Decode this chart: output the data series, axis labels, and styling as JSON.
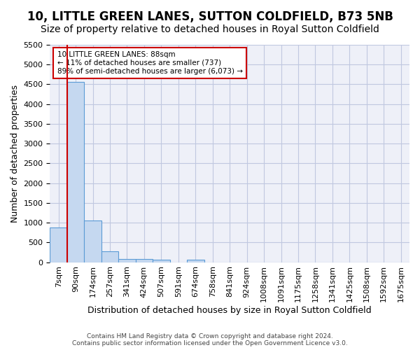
{
  "title": "10, LITTLE GREEN LANES, SUTTON COLDFIELD, B73 5NB",
  "subtitle": "Size of property relative to detached houses in Royal Sutton Coldfield",
  "xlabel": "Distribution of detached houses by size in Royal Sutton Coldfield",
  "ylabel": "Number of detached properties",
  "footer_line1": "Contains HM Land Registry data © Crown copyright and database right 2024.",
  "footer_line2": "Contains public sector information licensed under the Open Government Licence v3.0.",
  "bin_labels": [
    "7sqm",
    "90sqm",
    "174sqm",
    "257sqm",
    "341sqm",
    "424sqm",
    "507sqm",
    "591sqm",
    "674sqm",
    "758sqm",
    "841sqm",
    "924sqm",
    "1008sqm",
    "1091sqm",
    "1175sqm",
    "1258sqm",
    "1341sqm",
    "1425sqm",
    "1508sqm",
    "1592sqm",
    "1675sqm"
  ],
  "bar_values": [
    880,
    4560,
    1060,
    280,
    90,
    80,
    60,
    0,
    60,
    0,
    0,
    0,
    0,
    0,
    0,
    0,
    0,
    0,
    0,
    0,
    0
  ],
  "bar_color": "#c5d8f0",
  "bar_edge_color": "#5b9bd5",
  "property_line_color": "#cc0000",
  "annotation_text": "10 LITTLE GREEN LANES: 88sqm\n← 11% of detached houses are smaller (737)\n89% of semi-detached houses are larger (6,073) →",
  "annotation_box_color": "#cc0000",
  "ylim": [
    0,
    5500
  ],
  "yticks": [
    0,
    500,
    1000,
    1500,
    2000,
    2500,
    3000,
    3500,
    4000,
    4500,
    5000,
    5500
  ],
  "grid_color": "#c0c8e0",
  "background_color": "#eef0f8",
  "title_fontsize": 12,
  "subtitle_fontsize": 10,
  "axis_fontsize": 9,
  "tick_fontsize": 8
}
